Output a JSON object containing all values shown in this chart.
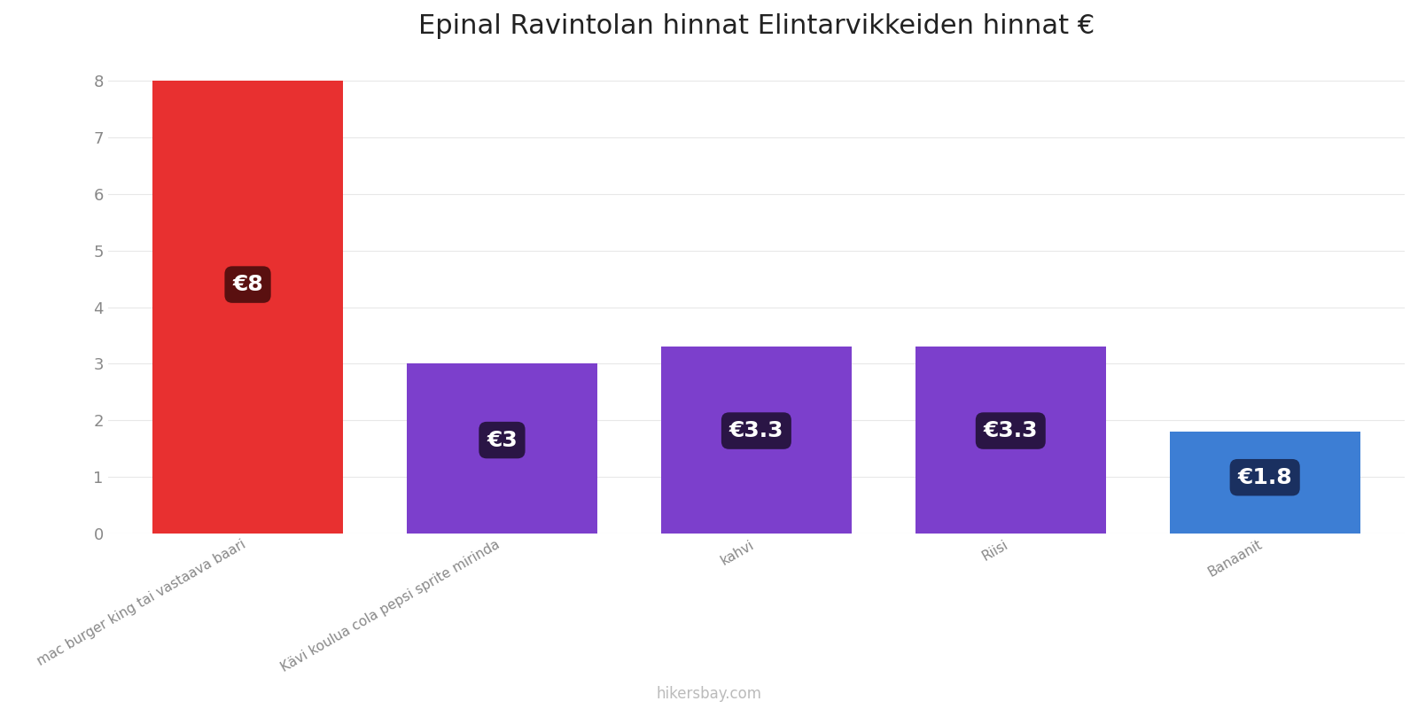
{
  "title": "Epinal Ravintolan hinnat Elintarvikkeiden hinnat €",
  "categories": [
    "mac burger king tai vastaava baari",
    "Kävi koulua cola pepsi sprite mirinda",
    "kahvi",
    "Riisi",
    "Banaanit"
  ],
  "values": [
    8,
    3,
    3.3,
    3.3,
    1.8
  ],
  "labels": [
    "€8",
    "€3",
    "€3.3",
    "€3.3",
    "€1.8"
  ],
  "bar_colors": [
    "#e83030",
    "#7c3fcc",
    "#7c3fcc",
    "#7c3fcc",
    "#3d7ed4"
  ],
  "label_bg_colors": [
    "#5a1010",
    "#2a1545",
    "#2a1545",
    "#2a1545",
    "#1a3060"
  ],
  "ylim": [
    0,
    8.4
  ],
  "yticks": [
    0,
    1,
    2,
    3,
    4,
    5,
    6,
    7,
    8
  ],
  "background_color": "#ffffff",
  "grid_color": "#e8e8e8",
  "title_fontsize": 22,
  "label_fontsize": 18,
  "tick_fontsize": 13,
  "footer_text": "hikersbay.com",
  "footer_color": "#bbbbbb"
}
